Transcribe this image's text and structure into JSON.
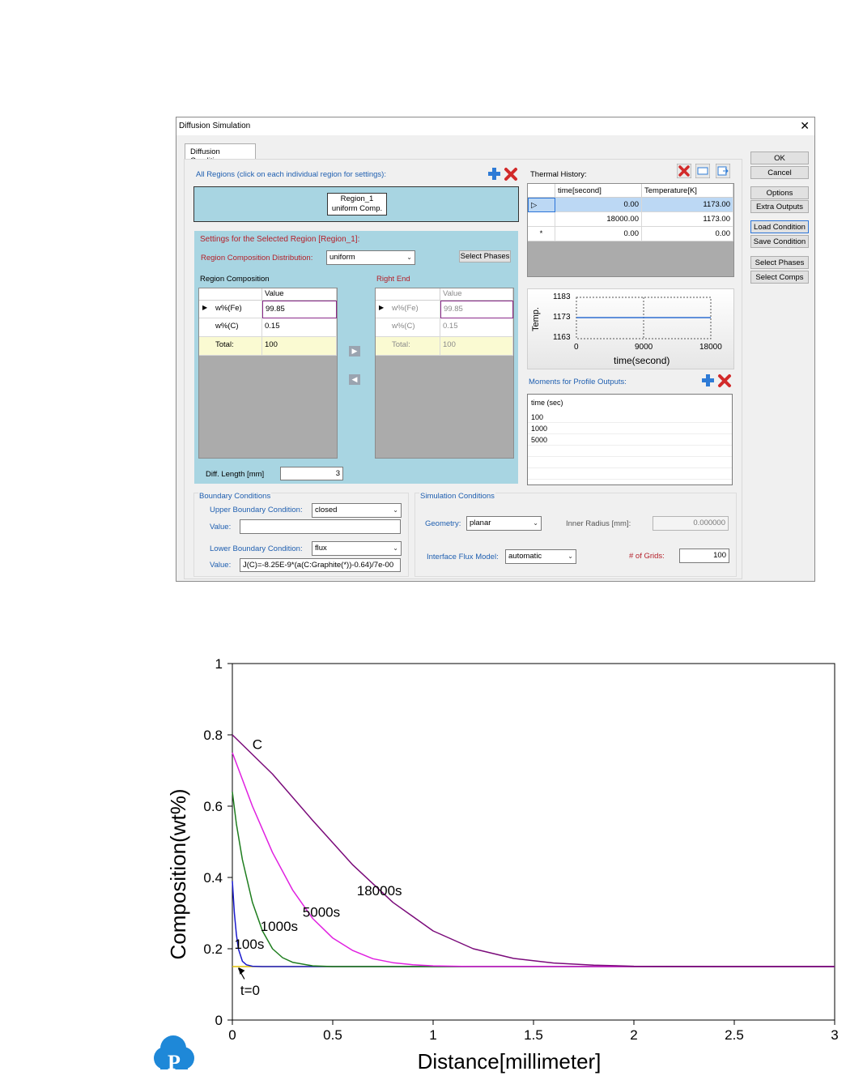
{
  "window": {
    "title": "Diffusion Simulation",
    "close_glyph": "✕",
    "tab": "Diffusion Conditions"
  },
  "buttons": {
    "ok": "OK",
    "cancel": "Cancel",
    "options": "Options",
    "extra_outputs": "Extra Outputs",
    "load_condition": "Load Condition",
    "save_condition": "Save Condition",
    "select_phases_side": "Select Phases",
    "select_comps": "Select Comps",
    "select_phases": "Select Phases"
  },
  "regions": {
    "header": "All Regions (click on each individual region for settings):",
    "region_name": "Region_1",
    "region_type": "uniform Comp."
  },
  "settings": {
    "title": "Settings for the Selected Region [Region_1]:",
    "distribution_label": "Region Composition Distribution:",
    "distribution_value": "uniform",
    "region_composition_label": "Region Composition",
    "right_end_label": "Right End",
    "value_header": "Value",
    "rows": [
      {
        "name": "w%(Fe)",
        "value": "99.85"
      },
      {
        "name": "w%(C)",
        "value": "0.15"
      },
      {
        "name": "Total:",
        "value": "100"
      }
    ],
    "right_rows": [
      {
        "name": "w%(Fe)",
        "value": "99.85"
      },
      {
        "name": "w%(C)",
        "value": "0.15"
      },
      {
        "name": "Total:",
        "value": "100"
      }
    ],
    "diff_length_label": "Diff. Length [mm]",
    "diff_length_value": "3"
  },
  "thermal": {
    "title": "Thermal History:",
    "col_time": "time[second]",
    "col_temp": "Temperature[K]",
    "rows": [
      {
        "marker": "▷",
        "time": "0.00",
        "temp": "1173.00"
      },
      {
        "marker": "",
        "time": "18000.00",
        "temp": "1173.00"
      },
      {
        "marker": "*",
        "time": "0.00",
        "temp": "0.00"
      }
    ],
    "mini_chart": {
      "y_ticks": [
        "1183",
        "1173",
        "1163"
      ],
      "x_ticks": [
        "0",
        "9000",
        "18000"
      ],
      "ylabel": "Temp.",
      "xlabel": "time(second)",
      "series_color": "#2e6fd0"
    }
  },
  "moments": {
    "title": "Moments for Profile Outputs:",
    "header": "time (sec)",
    "values": [
      "100",
      "1000",
      "5000"
    ]
  },
  "boundary": {
    "title": "Boundary Conditions",
    "upper_label": "Upper Boundary Condition:",
    "upper_value": "closed",
    "upper_value_label": "Value:",
    "upper_value_text": "",
    "lower_label": "Lower Boundary Condition:",
    "lower_value": "flux",
    "lower_value_label": "Value:",
    "lower_value_text": "J(C)=-8.25E-9*(a(C:Graphite(*))-0.64)/7e-00"
  },
  "simulation": {
    "title": "Simulation Conditions",
    "geometry_label": "Geometry:",
    "geometry_value": "planar",
    "inner_radius_label": "Inner Radius [mm]:",
    "inner_radius_value": "0.000000",
    "flux_model_label": "Interface Flux Model:",
    "flux_model_value": "automatic",
    "grids_label": "# of Grids:",
    "grids_value": "100"
  },
  "chart_data": {
    "type": "line",
    "title": "",
    "xlabel": "Distance[millimeter]",
    "ylabel": "Composition(wt%)",
    "xlim": [
      0,
      3
    ],
    "ylim": [
      0,
      1
    ],
    "x_ticks": [
      "0",
      "0.5",
      "1",
      "1.5",
      "2",
      "2.5",
      "3"
    ],
    "y_ticks": [
      "0",
      "0.2",
      "0.4",
      "0.6",
      "0.8",
      "1"
    ],
    "grid": false,
    "series": [
      {
        "name": "t=0",
        "color": "#e0c000",
        "x": [
          0,
          3
        ],
        "y": [
          0.15,
          0.15
        ]
      },
      {
        "name": "100s",
        "color": "#1a1acc",
        "x": [
          0,
          0.01,
          0.02,
          0.03,
          0.05,
          0.07,
          0.1,
          0.15,
          0.2,
          3
        ],
        "y": [
          0.39,
          0.3,
          0.24,
          0.2,
          0.165,
          0.155,
          0.151,
          0.15,
          0.15,
          0.15
        ]
      },
      {
        "name": "1000s",
        "color": "#1e7d1e",
        "x": [
          0,
          0.02,
          0.05,
          0.1,
          0.15,
          0.2,
          0.25,
          0.3,
          0.4,
          0.5,
          3
        ],
        "y": [
          0.64,
          0.55,
          0.45,
          0.33,
          0.25,
          0.2,
          0.175,
          0.162,
          0.152,
          0.15,
          0.15
        ]
      },
      {
        "name": "5000s",
        "color": "#e020e0",
        "x": [
          0,
          0.1,
          0.2,
          0.3,
          0.4,
          0.5,
          0.6,
          0.7,
          0.8,
          0.9,
          1.0,
          1.2,
          3
        ],
        "y": [
          0.75,
          0.6,
          0.47,
          0.365,
          0.285,
          0.23,
          0.195,
          0.172,
          0.161,
          0.155,
          0.152,
          0.15,
          0.15
        ]
      },
      {
        "name": "18000s",
        "color": "#7a0a7a",
        "x": [
          0,
          0.2,
          0.4,
          0.6,
          0.8,
          1.0,
          1.2,
          1.4,
          1.6,
          1.8,
          2.0,
          2.5,
          3
        ],
        "y": [
          0.8,
          0.69,
          0.56,
          0.435,
          0.33,
          0.25,
          0.2,
          0.173,
          0.16,
          0.154,
          0.151,
          0.15,
          0.15
        ]
      }
    ],
    "annotations": [
      {
        "text": "C",
        "x": 0.1,
        "y": 0.76
      },
      {
        "text": "18000s",
        "x": 0.62,
        "y": 0.35
      },
      {
        "text": "5000s",
        "x": 0.35,
        "y": 0.29
      },
      {
        "text": "1000s",
        "x": 0.14,
        "y": 0.25
      },
      {
        "text": "100s",
        "x": 0.01,
        "y": 0.2
      },
      {
        "text": "t=0",
        "x": 0.04,
        "y": 0.07
      }
    ]
  }
}
